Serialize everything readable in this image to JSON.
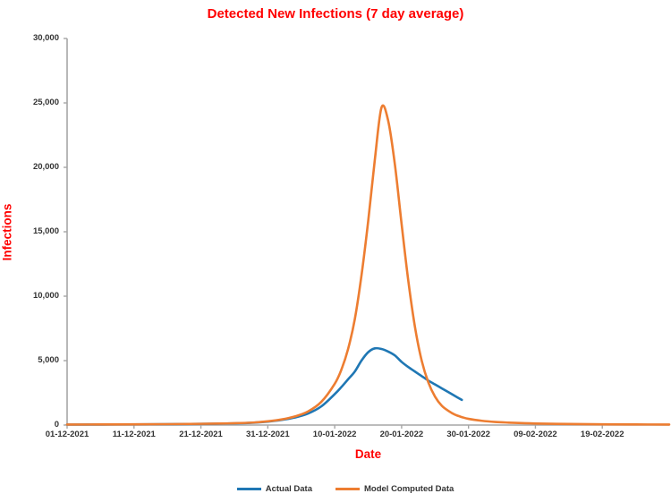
{
  "colors": {
    "title_red": "#FF0000",
    "axis_line_gray": "#A6A6A6",
    "tick_text": "#333333",
    "actual_blue": "#1F77B4",
    "model_orange": "#ED7D31",
    "background": "#FFFFFF"
  },
  "chart_data": {
    "type": "line",
    "title": "Detected New Infections (7 day average)",
    "xlabel": "Date",
    "ylabel": "Infections",
    "grid": false,
    "legend_position": "bottom",
    "x_unit": "days since 01-12-2021",
    "x_range_days": [
      0,
      90
    ],
    "x_tick_days": [
      0,
      10,
      20,
      30,
      40,
      50,
      60,
      70,
      80
    ],
    "x_tick_labels": [
      "01-12-2021",
      "11-12-2021",
      "21-12-2021",
      "31-12-2021",
      "10-01-2022",
      "20-01-2022",
      "30-01-2022",
      "09-02-2022",
      "19-02-2022"
    ],
    "ylim": [
      0,
      30000
    ],
    "y_tick_values": [
      0,
      5000,
      10000,
      15000,
      20000,
      25000,
      30000
    ],
    "y_tick_labels": [
      "0",
      "5,000",
      "10,000",
      "15,000",
      "20,000",
      "25,000",
      "30,000"
    ],
    "series": [
      {
        "name": "Actual Data",
        "color": "#1F77B4",
        "peak": {
          "date": "16-01-2022",
          "value": 5950
        },
        "points": [
          [
            0,
            35
          ],
          [
            5,
            40
          ],
          [
            10,
            50
          ],
          [
            15,
            65
          ],
          [
            20,
            90
          ],
          [
            25,
            130
          ],
          [
            28,
            185
          ],
          [
            30,
            265
          ],
          [
            32,
            390
          ],
          [
            34,
            580
          ],
          [
            36,
            890
          ],
          [
            38,
            1450
          ],
          [
            40,
            2400
          ],
          [
            41,
            2950
          ],
          [
            42,
            3550
          ],
          [
            43,
            4150
          ],
          [
            44,
            5000
          ],
          [
            45,
            5650
          ],
          [
            46,
            5950
          ],
          [
            47,
            5900
          ],
          [
            48,
            5700
          ],
          [
            49,
            5400
          ],
          [
            50,
            4900
          ],
          [
            51,
            4500
          ],
          [
            52,
            4150
          ],
          [
            53,
            3800
          ],
          [
            54,
            3450
          ],
          [
            55,
            3150
          ],
          [
            56,
            2850
          ],
          [
            57,
            2550
          ],
          [
            58,
            2250
          ],
          [
            59,
            1950
          ]
        ]
      },
      {
        "name": "Model Computed Data",
        "color": "#ED7D31",
        "peak": {
          "date": "17-01-2022",
          "value": 24650
        },
        "points": [
          [
            0,
            40
          ],
          [
            5,
            45
          ],
          [
            10,
            55
          ],
          [
            15,
            70
          ],
          [
            20,
            95
          ],
          [
            25,
            140
          ],
          [
            28,
            200
          ],
          [
            30,
            290
          ],
          [
            32,
            430
          ],
          [
            34,
            660
          ],
          [
            36,
            1050
          ],
          [
            38,
            1800
          ],
          [
            40,
            3200
          ],
          [
            41,
            4300
          ],
          [
            42,
            5900
          ],
          [
            43,
            8200
          ],
          [
            44,
            11600
          ],
          [
            45,
            15800
          ],
          [
            46,
            20600
          ],
          [
            47,
            24650
          ],
          [
            48,
            23600
          ],
          [
            49,
            20200
          ],
          [
            50,
            15600
          ],
          [
            51,
            11200
          ],
          [
            52,
            7600
          ],
          [
            53,
            5000
          ],
          [
            54,
            3300
          ],
          [
            55,
            2200
          ],
          [
            56,
            1500
          ],
          [
            57,
            1100
          ],
          [
            58,
            800
          ],
          [
            59,
            620
          ],
          [
            60,
            480
          ],
          [
            62,
            330
          ],
          [
            64,
            240
          ],
          [
            66,
            190
          ],
          [
            68,
            150
          ],
          [
            70,
            120
          ],
          [
            75,
            80
          ],
          [
            80,
            55
          ],
          [
            85,
            45
          ],
          [
            90,
            40
          ]
        ]
      }
    ]
  }
}
